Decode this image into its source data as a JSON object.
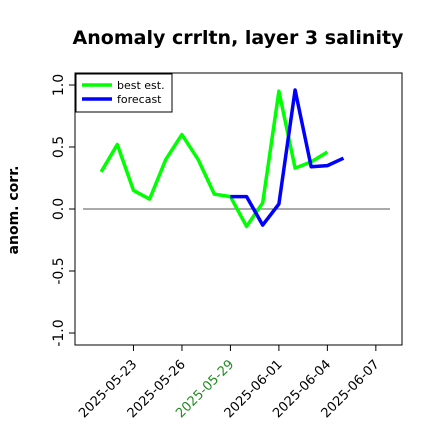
{
  "chart_data": {
    "type": "line",
    "title": "Anomaly crrltn, layer 3 salinity",
    "xlabel": "",
    "ylabel": "anom. corr.",
    "ylim": [
      -1.0,
      1.0
    ],
    "xlim": [
      "2025-05-20",
      "2025-06-08"
    ],
    "grid": false,
    "legend_position": "top-left",
    "x_tick_labels": [
      "2025-05-23",
      "2025-05-26",
      "2025-05-29",
      "2025-06-01",
      "2025-06-04",
      "2025-06-07"
    ],
    "x_tick_colors": [
      "#000000",
      "#000000",
      "#228b22",
      "#000000",
      "#000000",
      "#000000"
    ],
    "y_tick_labels": [
      "-1.0",
      "-0.5",
      "0.0",
      "0.5",
      "1.0"
    ],
    "y_ticks": [
      -1.0,
      -0.5,
      0.0,
      0.5,
      1.0
    ],
    "reference_line": 0.0,
    "series": [
      {
        "name": "best est.",
        "color": "#00ff00",
        "x": [
          "2025-05-21",
          "2025-05-22",
          "2025-05-23",
          "2025-05-24",
          "2025-05-25",
          "2025-05-26",
          "2025-05-27",
          "2025-05-28",
          "2025-05-29",
          "2025-05-30",
          "2025-05-31",
          "2025-06-01",
          "2025-06-02",
          "2025-06-03",
          "2025-06-04",
          "2025-06-05"
        ],
        "values": [
          0.3,
          0.52,
          0.15,
          0.08,
          0.4,
          0.6,
          0.4,
          0.12,
          0.1,
          -0.14,
          0.05,
          0.95,
          0.33,
          0.38,
          0.46,
          null
        ]
      },
      {
        "name": "forecast",
        "color": "#0000ff",
        "x": [
          "2025-05-29",
          "2025-05-30",
          "2025-05-31",
          "2025-06-01",
          "2025-06-02",
          "2025-06-03",
          "2025-06-04",
          "2025-06-05"
        ],
        "values": [
          0.1,
          0.1,
          -0.13,
          0.04,
          0.96,
          0.34,
          0.35,
          0.41
        ]
      }
    ]
  }
}
